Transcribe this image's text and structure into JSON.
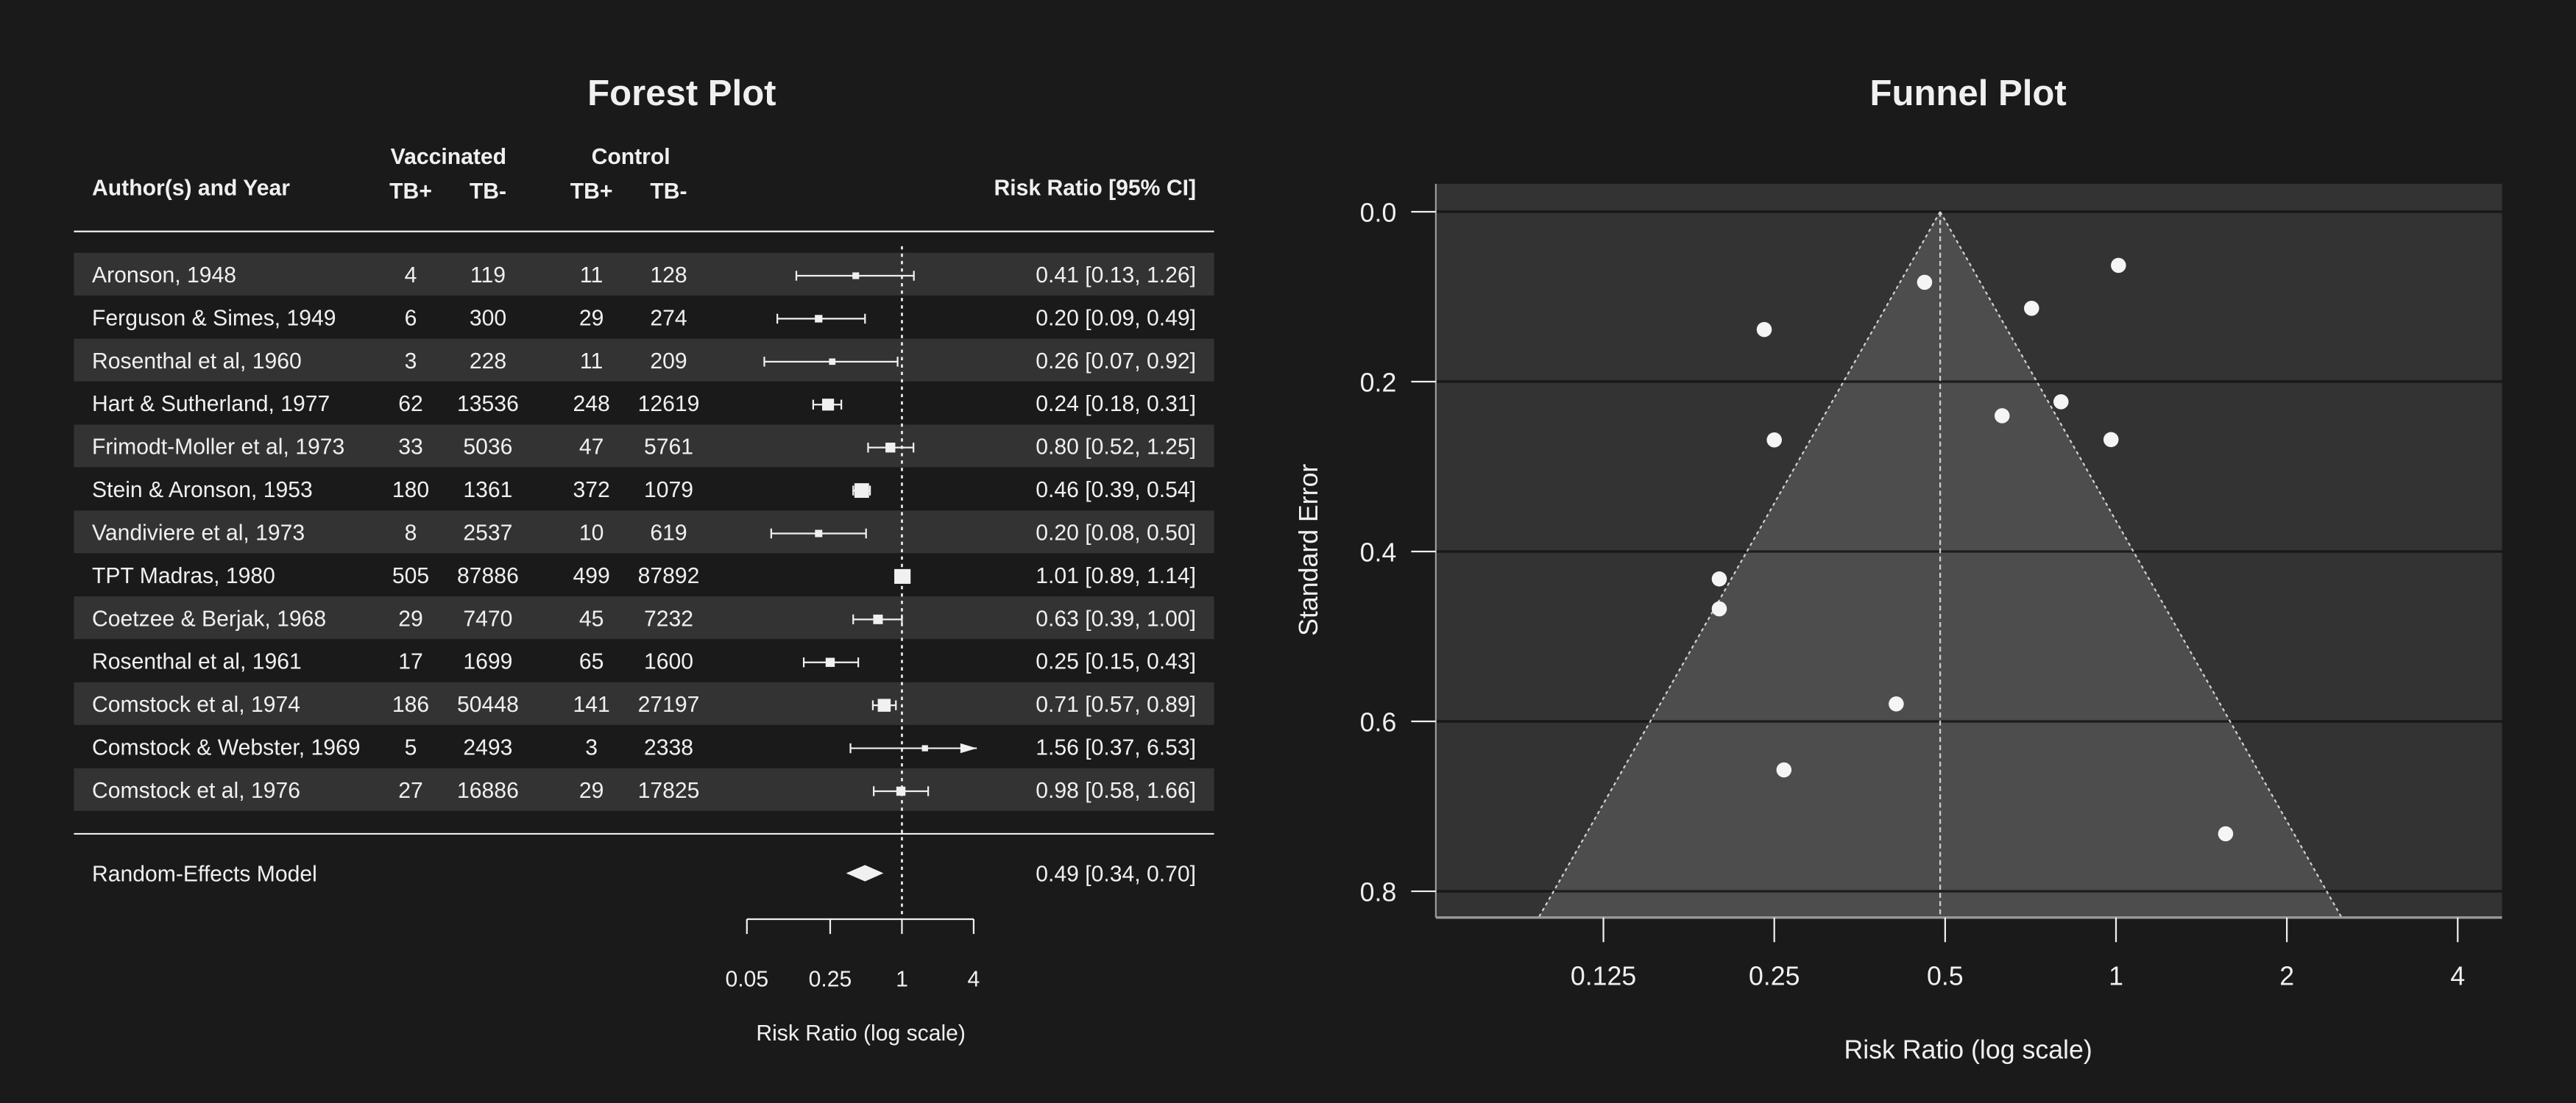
{
  "colors": {
    "background": "#1a1a1a",
    "row_alt": "#333333",
    "panel": "#333333",
    "funnel_fill": "#4d4d4d",
    "marks": "#f0f0f0"
  },
  "chart_data": [
    {
      "type": "forest",
      "title": "Forest Plot",
      "headers": {
        "author": "Author(s) and Year",
        "vaccinated": "Vaccinated",
        "control": "Control",
        "tbpos": "TB+",
        "tbneg": "TB-",
        "estimate": "Risk Ratio [95% CI]"
      },
      "xlabel": "Risk Ratio (log scale)",
      "xscale": "log",
      "xticks": [
        0.05,
        0.25,
        1,
        4
      ],
      "xtick_labels": [
        "0.05",
        "0.25",
        "1",
        "4"
      ],
      "reference_line": 1,
      "studies": [
        {
          "author": "Aronson, 1948",
          "v_pos": "4",
          "v_neg": "119",
          "c_pos": "11",
          "c_neg": "128",
          "rr": 0.41,
          "lb": 0.13,
          "ub": 1.26,
          "label": "0.41 [0.13, 1.26]"
        },
        {
          "author": "Ferguson & Simes, 1949",
          "v_pos": "6",
          "v_neg": "300",
          "c_pos": "29",
          "c_neg": "274",
          "rr": 0.2,
          "lb": 0.09,
          "ub": 0.49,
          "label": "0.20 [0.09, 0.49]"
        },
        {
          "author": "Rosenthal et al, 1960",
          "v_pos": "3",
          "v_neg": "228",
          "c_pos": "11",
          "c_neg": "209",
          "rr": 0.26,
          "lb": 0.07,
          "ub": 0.92,
          "label": "0.26 [0.07, 0.92]"
        },
        {
          "author": "Hart & Sutherland, 1977",
          "v_pos": "62",
          "v_neg": "13536",
          "c_pos": "248",
          "c_neg": "12619",
          "rr": 0.24,
          "lb": 0.18,
          "ub": 0.31,
          "label": "0.24 [0.18, 0.31]"
        },
        {
          "author": "Frimodt-Moller et al, 1973",
          "v_pos": "33",
          "v_neg": "5036",
          "c_pos": "47",
          "c_neg": "5761",
          "rr": 0.8,
          "lb": 0.52,
          "ub": 1.25,
          "label": "0.80 [0.52, 1.25]"
        },
        {
          "author": "Stein & Aronson, 1953",
          "v_pos": "180",
          "v_neg": "1361",
          "c_pos": "372",
          "c_neg": "1079",
          "rr": 0.46,
          "lb": 0.39,
          "ub": 0.54,
          "label": "0.46 [0.39, 0.54]"
        },
        {
          "author": "Vandiviere et al, 1973",
          "v_pos": "8",
          "v_neg": "2537",
          "c_pos": "10",
          "c_neg": "619",
          "rr": 0.2,
          "lb": 0.08,
          "ub": 0.5,
          "label": "0.20 [0.08, 0.50]"
        },
        {
          "author": "TPT Madras, 1980",
          "v_pos": "505",
          "v_neg": "87886",
          "c_pos": "499",
          "c_neg": "87892",
          "rr": 1.01,
          "lb": 0.89,
          "ub": 1.14,
          "label": "1.01 [0.89, 1.14]"
        },
        {
          "author": "Coetzee & Berjak, 1968",
          "v_pos": "29",
          "v_neg": "7470",
          "c_pos": "45",
          "c_neg": "7232",
          "rr": 0.63,
          "lb": 0.39,
          "ub": 1.0,
          "label": "0.63 [0.39, 1.00]"
        },
        {
          "author": "Rosenthal et al, 1961",
          "v_pos": "17",
          "v_neg": "1699",
          "c_pos": "65",
          "c_neg": "1600",
          "rr": 0.25,
          "lb": 0.15,
          "ub": 0.43,
          "label": "0.25 [0.15, 0.43]"
        },
        {
          "author": "Comstock et al, 1974",
          "v_pos": "186",
          "v_neg": "50448",
          "c_pos": "141",
          "c_neg": "27197",
          "rr": 0.71,
          "lb": 0.57,
          "ub": 0.89,
          "label": "0.71 [0.57, 0.89]"
        },
        {
          "author": "Comstock & Webster, 1969",
          "v_pos": "5",
          "v_neg": "2493",
          "c_pos": "3",
          "c_neg": "2338",
          "rr": 1.56,
          "lb": 0.37,
          "ub": 6.53,
          "label": "1.56 [0.37, 6.53]"
        },
        {
          "author": "Comstock et al, 1976",
          "v_pos": "27",
          "v_neg": "16886",
          "c_pos": "29",
          "c_neg": "17825",
          "rr": 0.98,
          "lb": 0.58,
          "ub": 1.66,
          "label": "0.98 [0.58, 1.66]"
        }
      ],
      "summary": {
        "label": "Random-Effects Model",
        "rr": 0.49,
        "lb": 0.34,
        "ub": 0.7,
        "text": "0.49 [0.34, 0.70]"
      }
    },
    {
      "type": "scatter",
      "title": "Funnel Plot",
      "xlabel": "Risk Ratio (log scale)",
      "ylabel": "Standard Error",
      "xscale": "log",
      "xticks": [
        0.125,
        0.25,
        0.5,
        1,
        2,
        4
      ],
      "xtick_labels": [
        "0.125",
        "0.25",
        "0.5",
        "1",
        "2",
        "4"
      ],
      "yticks": [
        0.0,
        0.2,
        0.4,
        0.6,
        0.8
      ],
      "ytick_labels": [
        "0.0",
        "0.2",
        "0.4",
        "0.6",
        "0.8"
      ],
      "xlim": [
        0.063,
        4.8
      ],
      "ylim": [
        0.831,
        -0.033
      ],
      "y_reversed": true,
      "grid": "horizontal",
      "center": 0.49,
      "points_from": "forest studies (RR vs standard error)"
    }
  ]
}
